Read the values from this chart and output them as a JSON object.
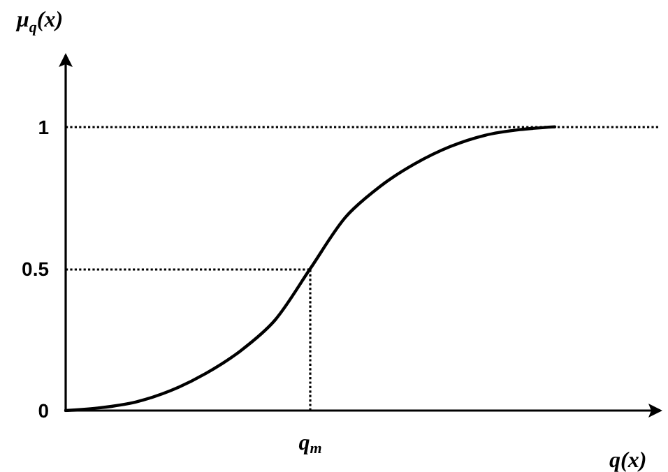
{
  "chart_data": {
    "type": "line",
    "xlabel": "q(x)",
    "ylabel": "μ$_{q}$(x)",
    "categories": [
      null,
      null,
      null,
      null,
      null,
      null,
      null,
      "q$_{m}$",
      null,
      null,
      null,
      null,
      null,
      null,
      null,
      null,
      null,
      null
    ],
    "series": [
      {
        "color": "#000000",
        "values": [
          0,
          0.01,
          0.03,
          0.07,
          0.13,
          0.21,
          0.32,
          0.5,
          0.68,
          0.79,
          0.87,
          0.93,
          0.97,
          0.99,
          1,
          null,
          null,
          null
        ]
      }
    ],
    "ylim": [
      0,
      1.25
    ],
    "yticks": [
      0,
      0.5,
      1
    ],
    "grid": false,
    "marker": "none",
    "line_style": "solid",
    "ref_lines": [
      {
        "axis": "y",
        "value": 1,
        "color": "#000000",
        "line_style": "dotted"
      },
      {
        "axis": "y",
        "value": 0.5,
        "color": "#000000",
        "line_style": "dotted"
      },
      {
        "axis": "x",
        "value": "q$_{m}$",
        "color": "#000000",
        "line_style": "dotted"
      }
    ]
  }
}
